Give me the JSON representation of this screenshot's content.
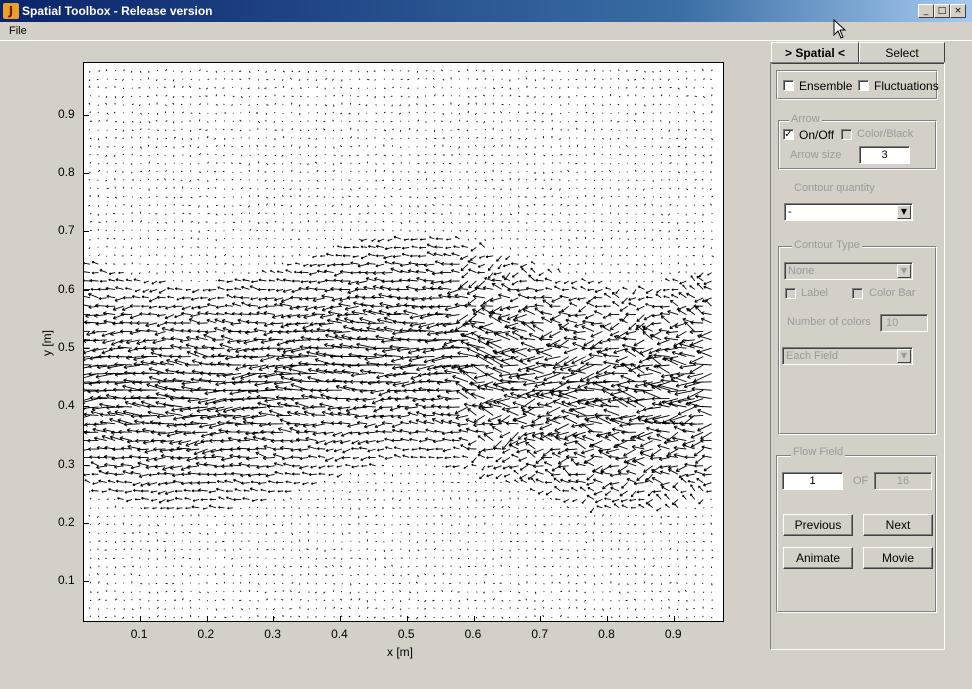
{
  "window": {
    "title": "Spatial Toolbox - Release version",
    "controls": [
      "minimize",
      "maximize",
      "close"
    ]
  },
  "menu": {
    "items": [
      "File"
    ]
  },
  "plot": {
    "xlabel": "x [m]",
    "ylabel": "y [m]",
    "xticks": [
      "0.1",
      "0.2",
      "0.3",
      "0.4",
      "0.5",
      "0.6",
      "0.7",
      "0.8",
      "0.9"
    ],
    "yticks": [
      "0.9",
      "0.8",
      "0.7",
      "0.6",
      "0.5",
      "0.4",
      "0.3",
      "0.2",
      "0.1"
    ],
    "xlim": [
      0.015,
      0.975
    ],
    "ylim": [
      0.03,
      0.99
    ]
  },
  "tabs": {
    "spatial": "> Spatial <",
    "select": "Select"
  },
  "options": {
    "ensemble": {
      "label": "Ensemble",
      "checked": false
    },
    "fluctuations": {
      "label": "Fluctuations",
      "checked": false
    }
  },
  "arrow": {
    "title": "Arrow",
    "onoff": {
      "label": "On/Off",
      "checked": true
    },
    "color": {
      "label": "Color/Black",
      "checked": false
    },
    "size_label": "Arrow size",
    "size_value": "3"
  },
  "contour_quantity": {
    "label": "Contour quantity",
    "value": "-"
  },
  "contour_type": {
    "title": "Contour Type",
    "type_value": "None",
    "label_chk": {
      "label": "Label",
      "checked": false
    },
    "colorbar_chk": {
      "label": "Color Bar",
      "checked": false
    },
    "ncolors_label": "Number of colors",
    "ncolors_value": "10",
    "scale_value": "Each Field"
  },
  "flow_field": {
    "title": "Flow Field",
    "current": "1",
    "of_label": "OF",
    "total": "16",
    "previous": "Previous",
    "next": "Next",
    "animate": "Animate",
    "movie": "Movie"
  }
}
